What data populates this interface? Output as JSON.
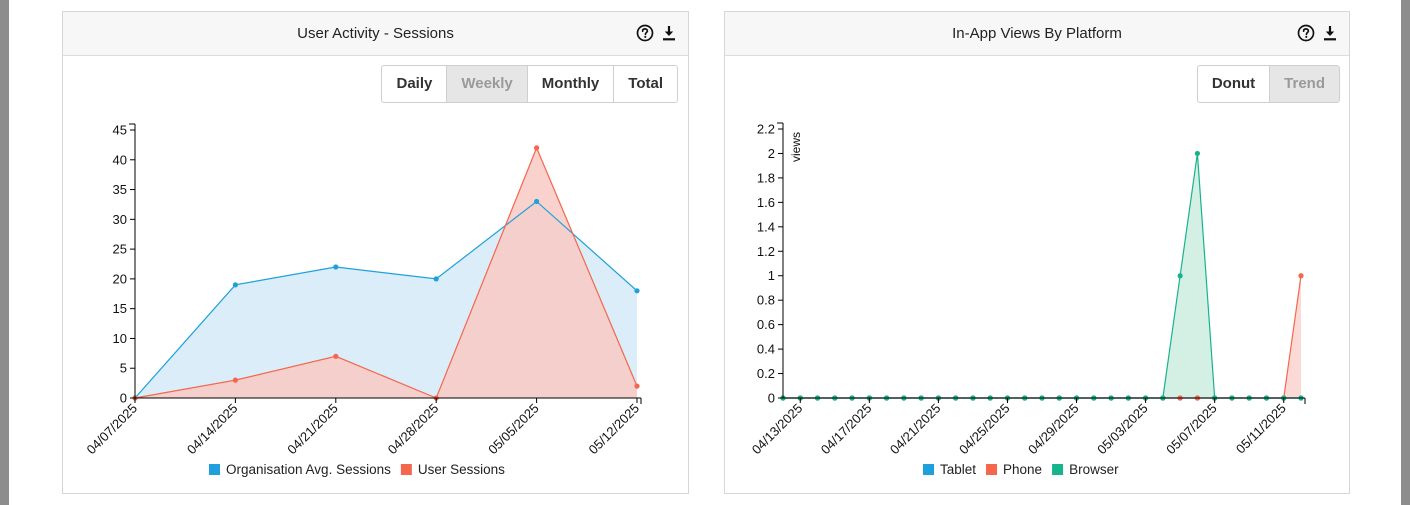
{
  "panels": [
    {
      "title": "User Activity - Sessions",
      "buttons": [
        "Daily",
        "Weekly",
        "Monthly",
        "Total"
      ],
      "active_button": "Weekly"
    },
    {
      "title": "In-App Views By Platform",
      "buttons": [
        "Donut",
        "Trend"
      ],
      "active_button": "Trend"
    }
  ],
  "icons": [
    "help-icon",
    "download-icon"
  ],
  "chart_data": [
    {
      "type": "area",
      "title": "User Activity - Sessions",
      "x": [
        "04/07/2025",
        "04/14/2025",
        "04/21/2025",
        "04/28/2025",
        "05/05/2025",
        "05/12/2025"
      ],
      "xlabel": "",
      "ylabel": "",
      "ylim": [
        0,
        45
      ],
      "yticks": [
        0,
        5,
        10,
        15,
        20,
        25,
        30,
        35,
        40,
        45
      ],
      "grid": false,
      "legend": "bottom",
      "series": [
        {
          "name": "Organisation Avg. Sessions",
          "color": "#1ea0dc",
          "fill": "#d4eaf7",
          "values": [
            0,
            19,
            22,
            20,
            33,
            18
          ]
        },
        {
          "name": "User Sessions",
          "color": "#f4674d",
          "fill": "#f8c9c4",
          "values": [
            0,
            3,
            7,
            0,
            42,
            2
          ]
        }
      ]
    },
    {
      "type": "area",
      "title": "In-App Views By Platform",
      "x": [
        "04/12/2025",
        "04/13/2025",
        "04/14/2025",
        "04/15/2025",
        "04/16/2025",
        "04/17/2025",
        "04/18/2025",
        "04/19/2025",
        "04/20/2025",
        "04/21/2025",
        "04/22/2025",
        "04/23/2025",
        "04/24/2025",
        "04/25/2025",
        "04/26/2025",
        "04/27/2025",
        "04/28/2025",
        "04/29/2025",
        "04/30/2025",
        "05/01/2025",
        "05/02/2025",
        "05/03/2025",
        "05/04/2025",
        "05/05/2025",
        "05/06/2025",
        "05/07/2025",
        "05/08/2025",
        "05/09/2025",
        "05/10/2025",
        "05/11/2025",
        "05/12/2025"
      ],
      "tick_labels": [
        "04/13/2025",
        "04/17/2025",
        "04/21/2025",
        "04/25/2025",
        "04/29/2025",
        "05/03/2025",
        "05/07/2025",
        "05/11/2025"
      ],
      "xlabel": "",
      "ylabel": "views",
      "ylim": [
        0,
        2.2
      ],
      "yticks": [
        0,
        0.2,
        0.4,
        0.6,
        0.8,
        1,
        1.2,
        1.4,
        1.6,
        1.8,
        2,
        2.2
      ],
      "grid": false,
      "legend": "bottom",
      "series": [
        {
          "name": "Tablet",
          "color": "#1ea0dc",
          "fill": "#d4eaf7",
          "values": [
            0,
            0,
            0,
            0,
            0,
            0,
            0,
            0,
            0,
            0,
            0,
            0,
            0,
            0,
            0,
            0,
            0,
            0,
            0,
            0,
            0,
            0,
            0,
            0,
            0,
            0,
            0,
            0,
            0,
            0,
            0
          ]
        },
        {
          "name": "Phone",
          "color": "#f4674d",
          "fill": "#fbd5cf",
          "values": [
            0,
            0,
            0,
            0,
            0,
            0,
            0,
            0,
            0,
            0,
            0,
            0,
            0,
            0,
            0,
            0,
            0,
            0,
            0,
            0,
            0,
            0,
            0,
            0,
            0,
            0,
            0,
            0,
            0,
            0,
            1
          ]
        },
        {
          "name": "Browser",
          "color": "#16b38c",
          "fill": "#cfeee2",
          "values": [
            0,
            0,
            0,
            0,
            0,
            0,
            0,
            0,
            0,
            0,
            0,
            0,
            0,
            0,
            0,
            0,
            0,
            0,
            0,
            0,
            0,
            0,
            0,
            1,
            2,
            0,
            0,
            0,
            0,
            0,
            0
          ]
        }
      ]
    }
  ]
}
